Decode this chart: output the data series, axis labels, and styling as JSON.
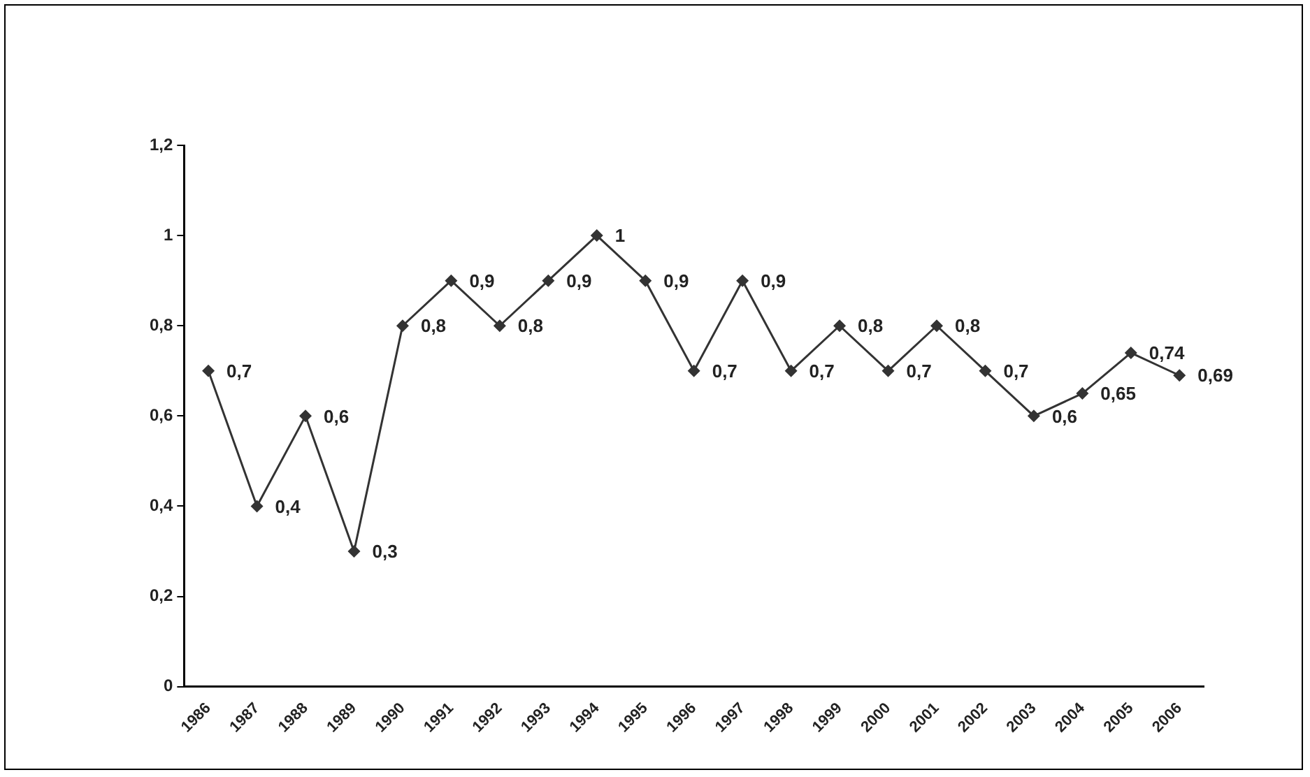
{
  "chart_data": {
    "type": "line",
    "categories": [
      "1986",
      "1987",
      "1988",
      "1989",
      "1990",
      "1991",
      "1992",
      "1993",
      "1994",
      "1995",
      "1996",
      "1997",
      "1998",
      "1999",
      "2000",
      "2001",
      "2002",
      "2003",
      "2004",
      "2005",
      "2006"
    ],
    "series": [
      {
        "color": "#333333",
        "values": [
          0.7,
          0.4,
          0.6,
          0.3,
          0.8,
          0.9,
          0.8,
          0.9,
          1,
          0.9,
          0.7,
          0.9,
          0.7,
          0.8,
          0.7,
          0.8,
          0.7,
          0.6,
          0.65,
          0.74,
          0.69
        ],
        "value_labels": [
          "0,7",
          "0,4",
          "0,6",
          "0,3",
          "0,8",
          "0,9",
          "0,8",
          "0,9",
          "1",
          "0,9",
          "0,7",
          "0,9",
          "0,7",
          "0,8",
          "0,7",
          "0,8",
          "0,7",
          "0,6",
          "0,65",
          "0,74",
          "0,69"
        ]
      }
    ],
    "ylim": [
      0,
      1.2
    ],
    "yticks": [
      0,
      {
        "value": 0.2,
        "label": "0,2"
      },
      {
        "value": 0.4,
        "label": "0,4"
      },
      {
        "value": 0.6,
        "label": "0,6"
      },
      {
        "value": 0.8,
        "label": "0,8"
      },
      1,
      {
        "value": 1.2,
        "label": "1,2"
      }
    ],
    "marker": "diamond",
    "line_style": "solid",
    "grid": false,
    "legend": false
  }
}
